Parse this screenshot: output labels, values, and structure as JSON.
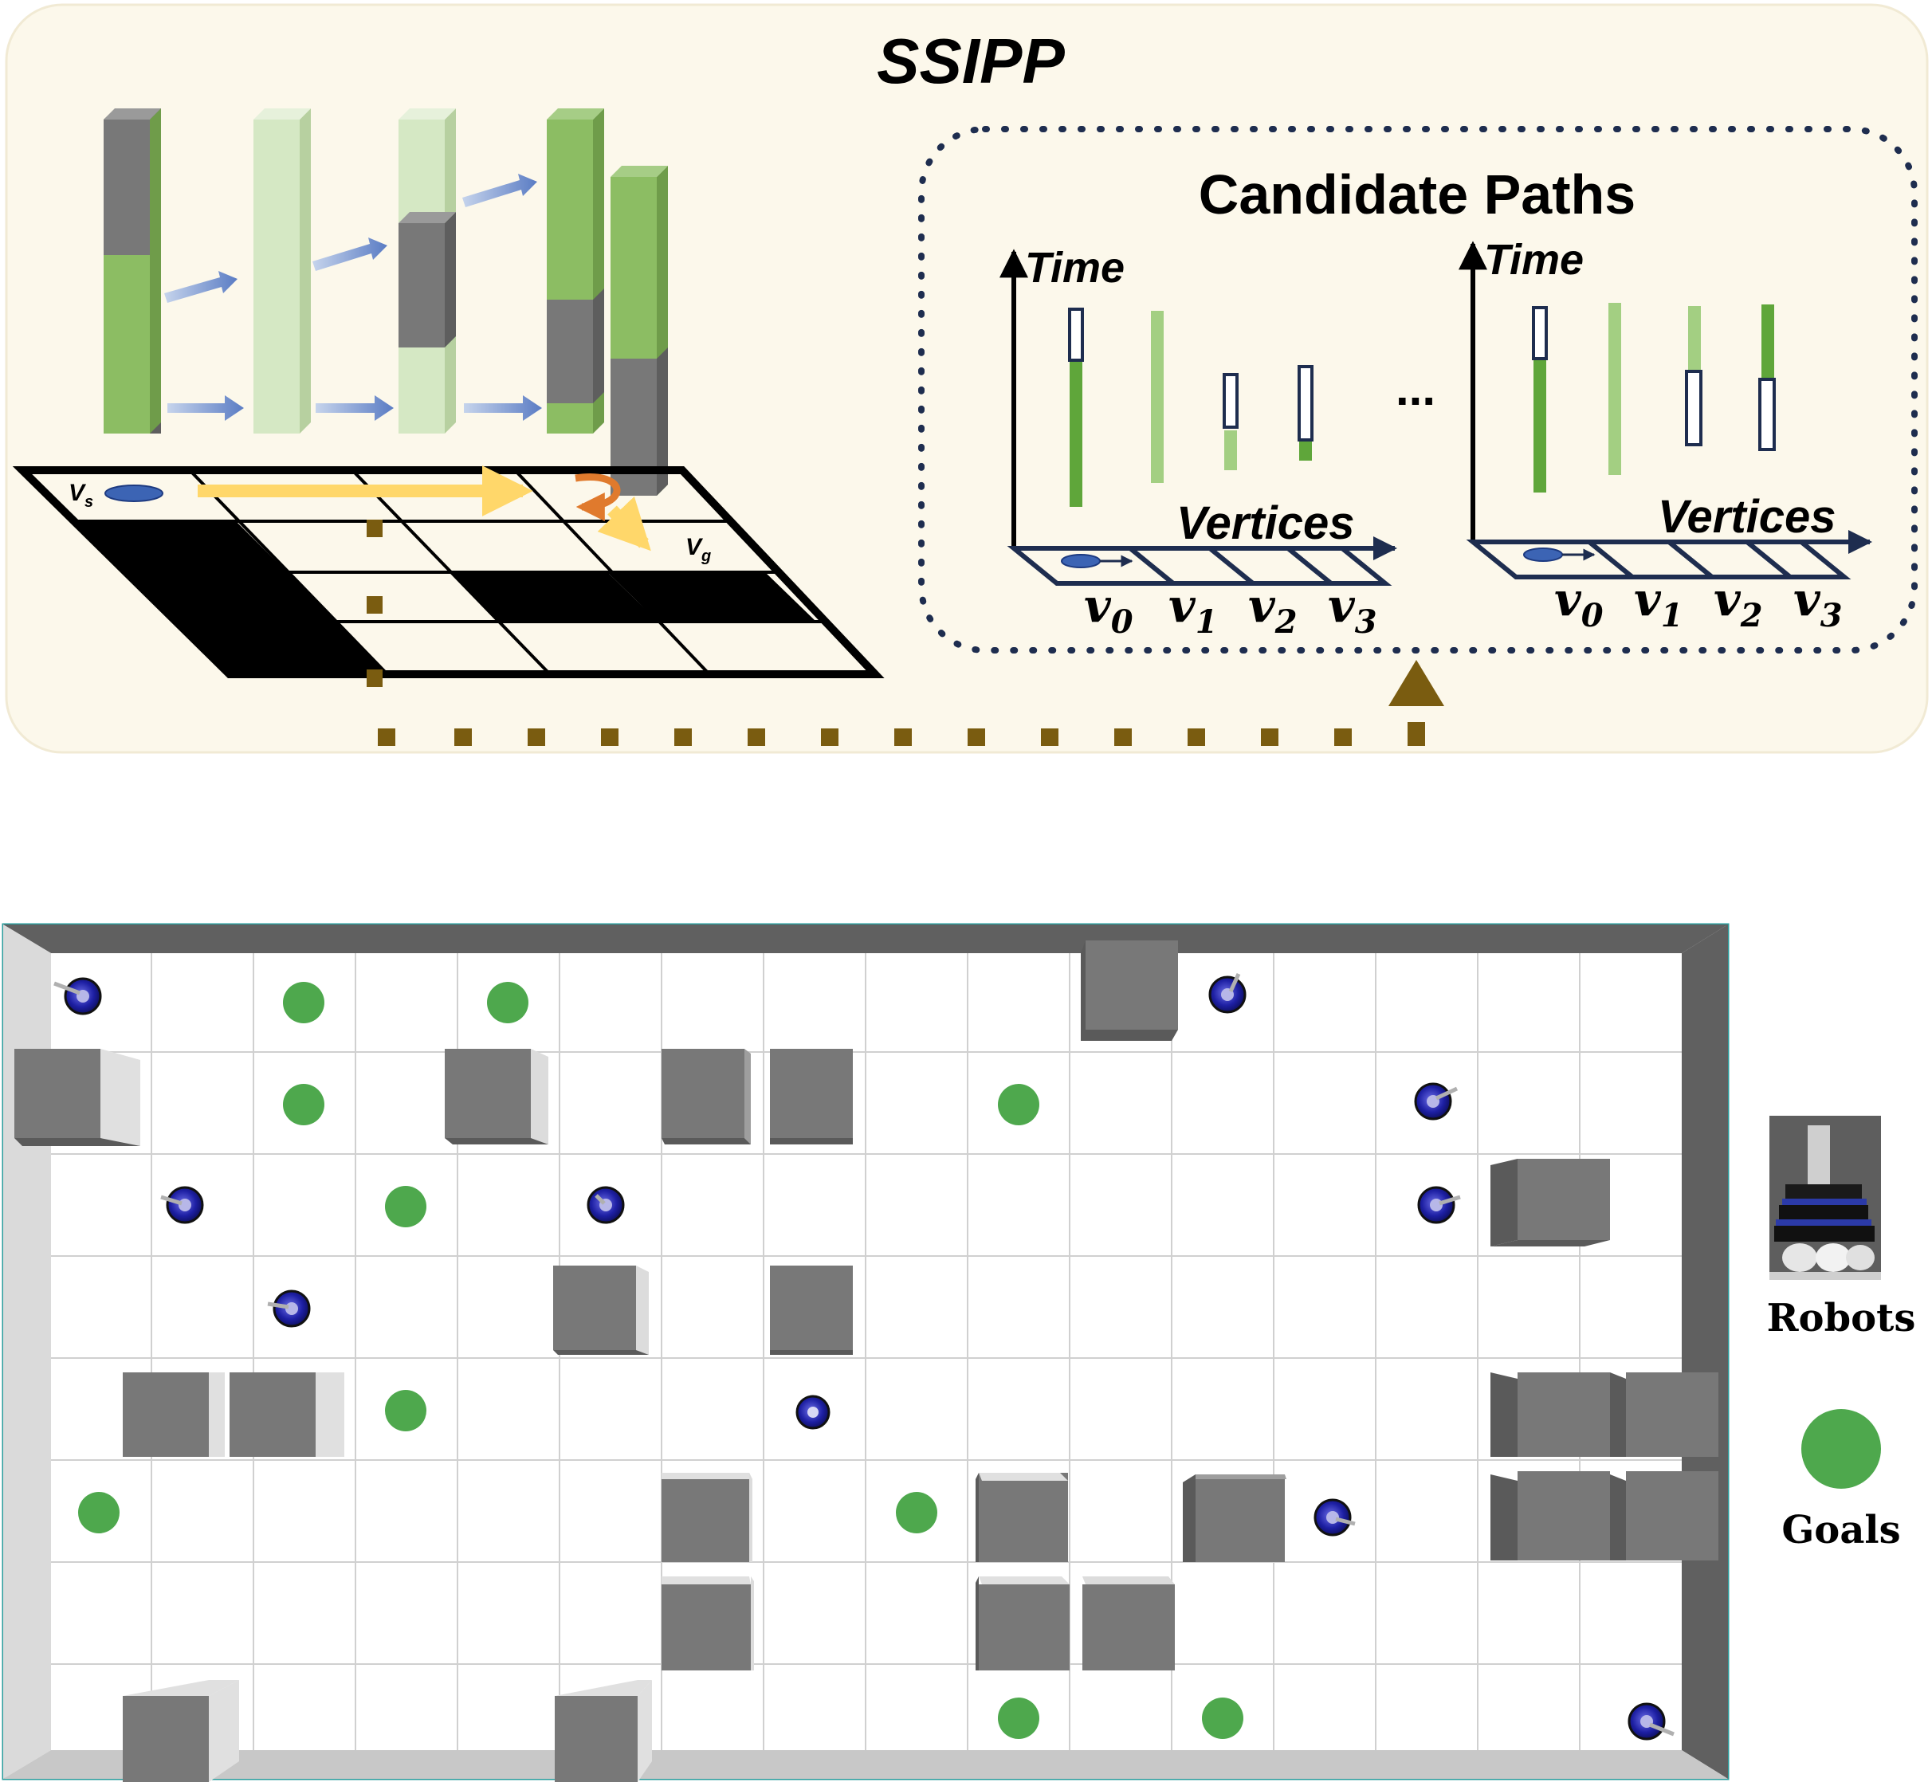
{
  "ssipp": {
    "title": "SSIPP",
    "start_label": "V",
    "start_sub": "s",
    "goal_label": "V",
    "goal_sub": "g"
  },
  "candidates": {
    "title": "Candidate Paths",
    "ellipsis": "...",
    "plots": [
      {
        "time_label": "Time",
        "vertices_label": "Vertices",
        "v_labels": [
          "v",
          "v",
          "v",
          "v"
        ],
        "v_subs": [
          "0",
          "1",
          "2",
          "3"
        ]
      },
      {
        "time_label": "Time",
        "vertices_label": "Vertices",
        "v_labels": [
          "v",
          "v",
          "v",
          "v"
        ],
        "v_subs": [
          "0",
          "1",
          "2",
          "3"
        ]
      }
    ]
  },
  "legend": {
    "robots_label": "Robots",
    "goals_label": "Goals"
  },
  "colors": {
    "panel_bg": "#fcf8eb",
    "green_dark": "#8cbd63",
    "green_light": "#d5e8c4",
    "gray_block": "#787878",
    "arrow_blue": "#7f9fd1",
    "path_yellow": "#ffd76a",
    "turn_orange": "#e07a2d",
    "dot_brown": "#7a5c10",
    "goal_green": "#4ea84d",
    "robot_blue": "#1d1fa3",
    "wall_dark": "#606060",
    "wall_light": "#dadada",
    "grid_line": "#d0d0d0"
  }
}
